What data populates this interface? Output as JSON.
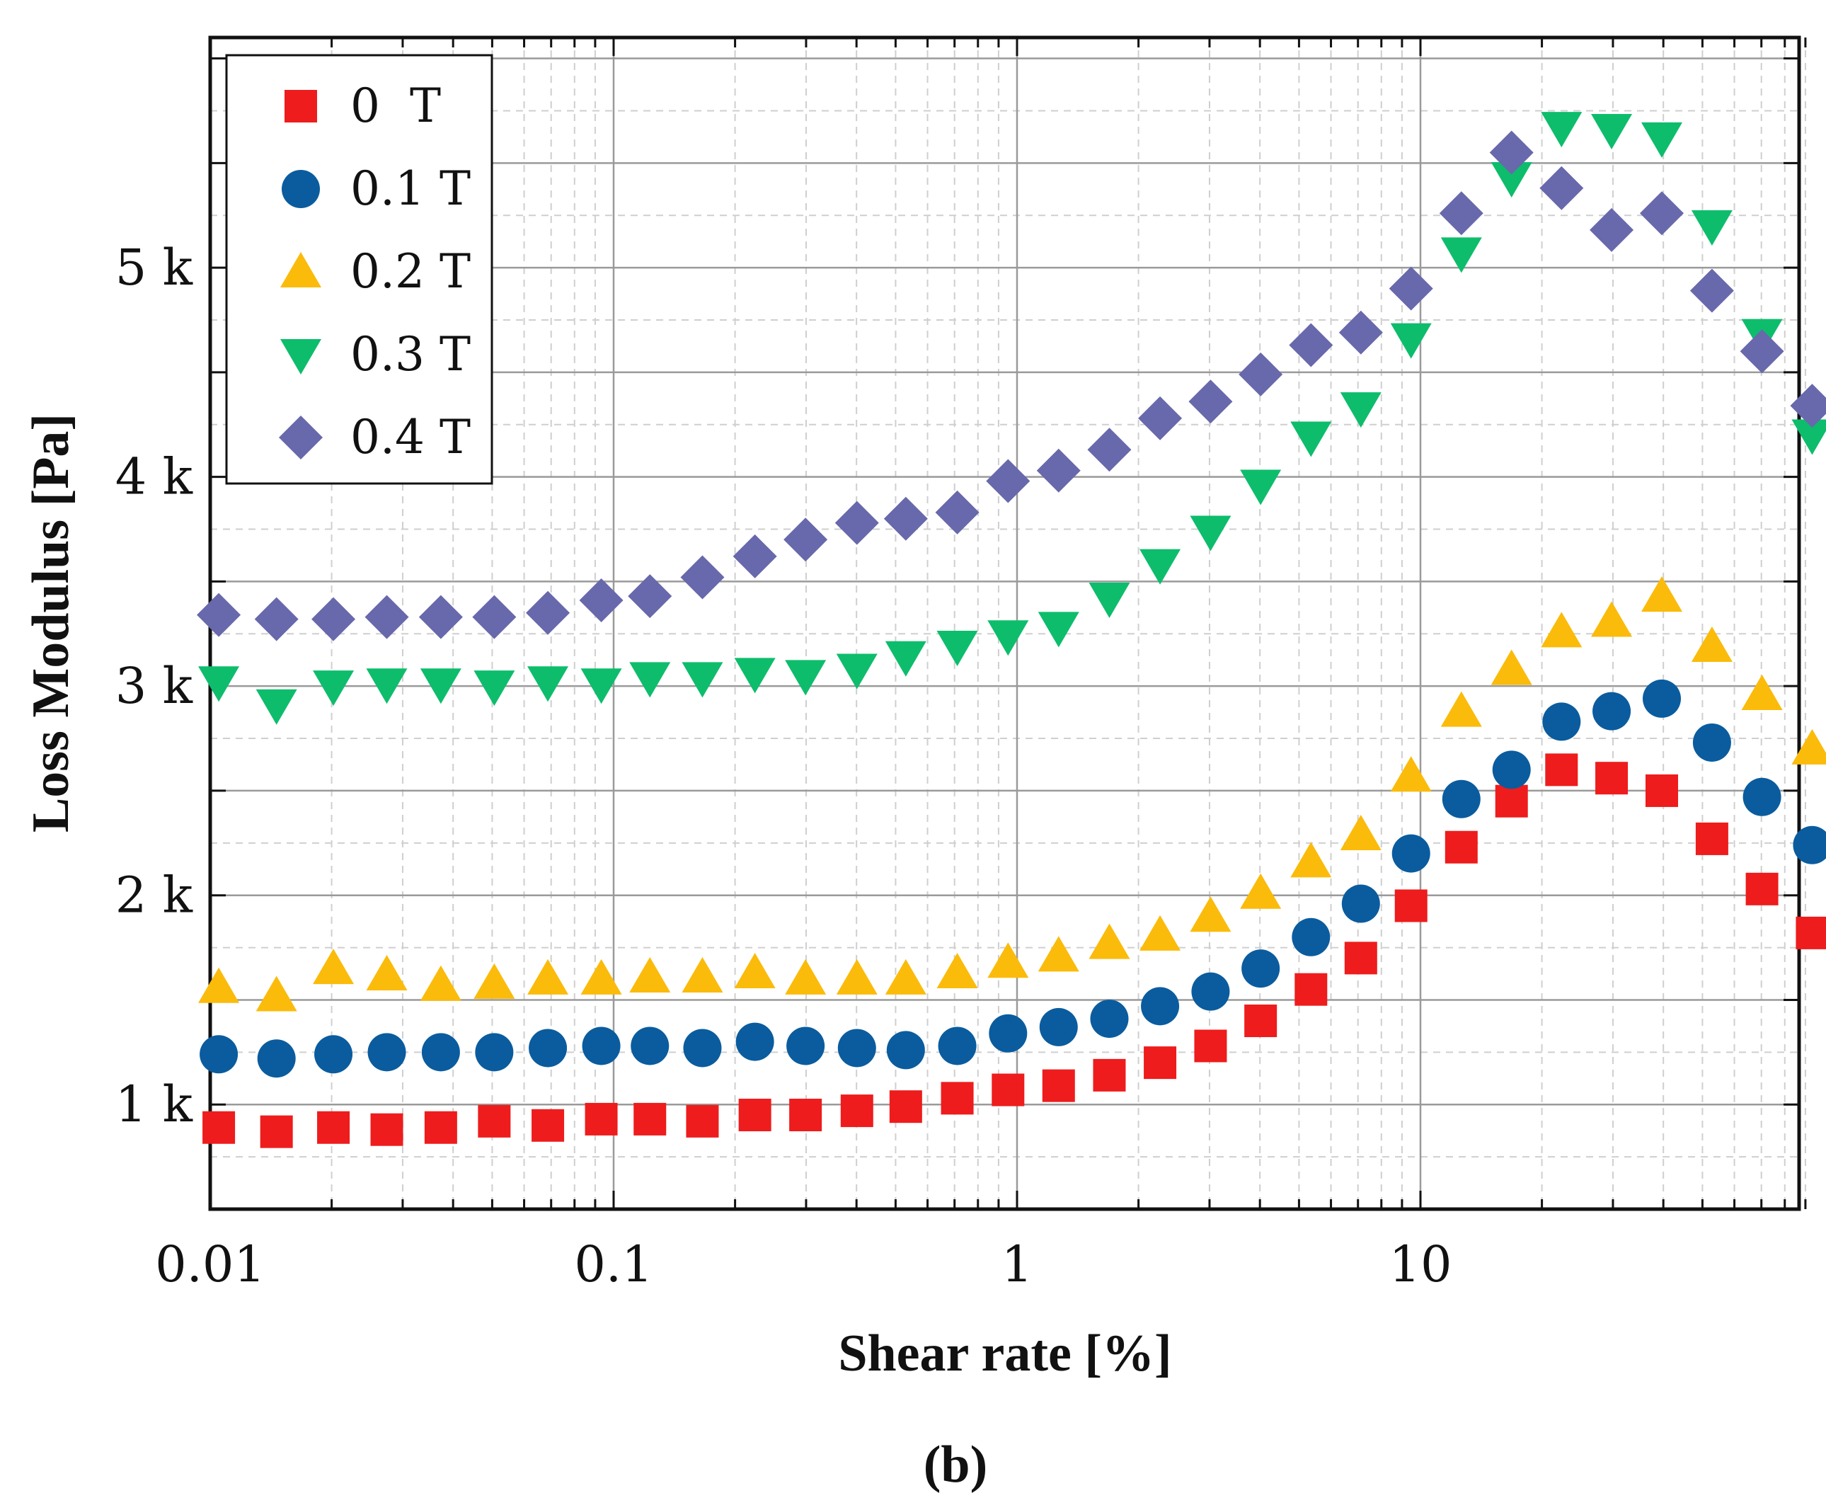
{
  "chart_data": {
    "type": "scatter",
    "title": "",
    "xlabel": "Shear rate [%]",
    "ylabel": "Loss Modulus [Pa]",
    "xscale": "log",
    "xlim": [
      0.01,
      90
    ],
    "ylim": [
      500,
      6100
    ],
    "grid": true,
    "legend_position": "top-left",
    "x_ticks": [
      {
        "value": 0.01,
        "label": "0.01"
      },
      {
        "value": 0.1,
        "label": "0.1"
      },
      {
        "value": 1,
        "label": "1"
      },
      {
        "value": 10,
        "label": "10"
      }
    ],
    "y_ticks": [
      {
        "value": 1000,
        "label": "1 k"
      },
      {
        "value": 2000,
        "label": "2 k"
      },
      {
        "value": 3000,
        "label": "3 k"
      },
      {
        "value": 4000,
        "label": "4 k"
      },
      {
        "value": 5000,
        "label": "5 k"
      }
    ],
    "x": [
      0.0105,
      0.0146,
      0.0202,
      0.0274,
      0.0373,
      0.0506,
      0.0687,
      0.0932,
      0.123,
      0.166,
      0.224,
      0.299,
      0.401,
      0.53,
      0.711,
      0.95,
      1.268,
      1.694,
      2.262,
      3.018,
      4.016,
      5.353,
      7.117,
      9.478,
      12.63,
      16.82,
      22.37,
      29.77,
      39.65,
      52.8,
      70.25,
      93.53
    ],
    "series": [
      {
        "name": "0  T",
        "marker": "square",
        "color": "#ee1c1c",
        "values": [
          890,
          870,
          890,
          880,
          890,
          920,
          900,
          930,
          930,
          920,
          950,
          950,
          970,
          990,
          1030,
          1070,
          1090,
          1140,
          1200,
          1280,
          1400,
          1550,
          1700,
          1950,
          2230,
          2450,
          2600,
          2560,
          2500,
          2270,
          2030,
          1820
        ]
      },
      {
        "name": "0.1 T",
        "marker": "circle",
        "color": "#0a5c9e",
        "values": [
          1240,
          1220,
          1240,
          1250,
          1250,
          1250,
          1270,
          1280,
          1280,
          1270,
          1300,
          1280,
          1270,
          1260,
          1280,
          1340,
          1370,
          1410,
          1470,
          1540,
          1650,
          1800,
          1960,
          2200,
          2460,
          2600,
          2830,
          2880,
          2940,
          2730,
          2470,
          2240
        ]
      },
      {
        "name": "0.2 T",
        "marker": "triangle-up",
        "color": "#fbbb0a",
        "values": [
          1560,
          1520,
          1650,
          1620,
          1570,
          1580,
          1600,
          1600,
          1610,
          1610,
          1630,
          1600,
          1600,
          1600,
          1630,
          1680,
          1710,
          1770,
          1810,
          1900,
          2010,
          2160,
          2290,
          2570,
          2880,
          3080,
          3260,
          3310,
          3430,
          3190,
          2960,
          2700
        ]
      },
      {
        "name": "0.3 T",
        "marker": "triangle-down",
        "color": "#0dbd6c",
        "values": [
          3020,
          2910,
          3000,
          3010,
          3010,
          3000,
          3020,
          3010,
          3040,
          3040,
          3060,
          3050,
          3080,
          3140,
          3190,
          3240,
          3280,
          3420,
          3580,
          3740,
          3960,
          4190,
          4330,
          4660,
          5070,
          5430,
          5670,
          5660,
          5620,
          5200,
          4680,
          4200
        ]
      },
      {
        "name": "0.4 T",
        "marker": "diamond",
        "color": "#6868ac",
        "values": [
          3340,
          3320,
          3320,
          3330,
          3330,
          3330,
          3350,
          3410,
          3430,
          3520,
          3620,
          3700,
          3780,
          3800,
          3830,
          3980,
          4030,
          4130,
          4280,
          4360,
          4490,
          4630,
          4690,
          4900,
          5260,
          5550,
          5380,
          5180,
          5260,
          4890,
          4600,
          4340
        ]
      }
    ]
  },
  "caption": "(b)"
}
